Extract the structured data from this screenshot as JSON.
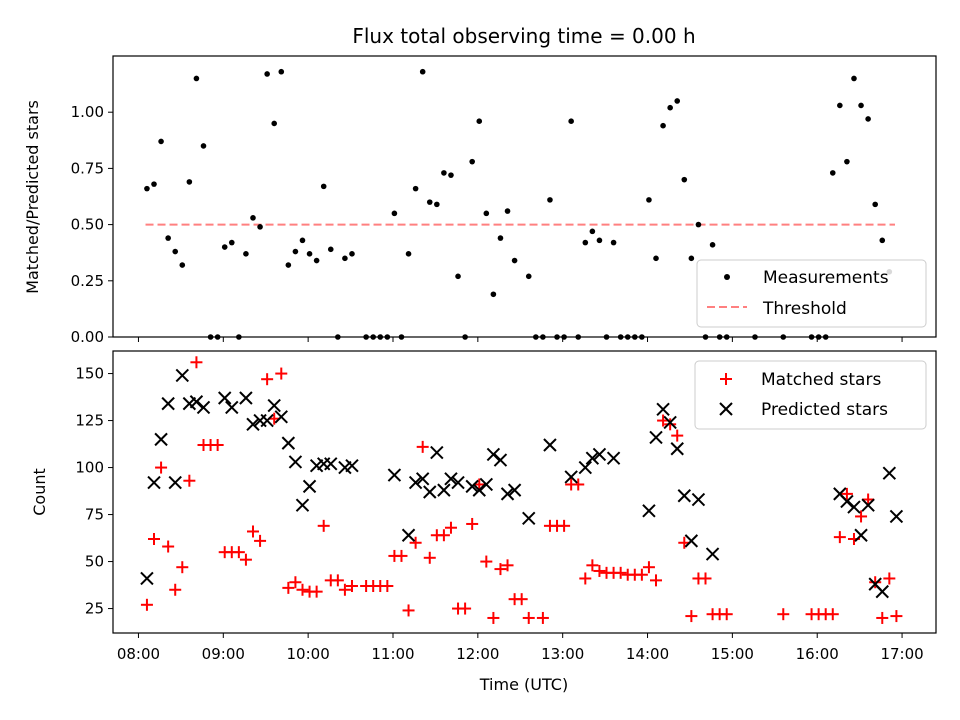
{
  "chart_data": [
    {
      "type": "scatter",
      "title": "Flux total observing time = 0.00 h",
      "xlabel": "",
      "ylabel": "Matched/Predicted stars",
      "xlim": [
        "07:42",
        "17:24"
      ],
      "ylim": [
        0,
        1.25
      ],
      "yticks": [
        "0.00",
        "0.25",
        "0.50",
        "0.75",
        "1.00"
      ],
      "legend": [
        "Measurements",
        "Threshold"
      ],
      "legend_position": "lower-right",
      "threshold": {
        "value": 0.5,
        "x_start": "08:05",
        "x_end": "16:55",
        "color": "#ff8080"
      },
      "series": [
        {
          "name": "Measurements",
          "color": "#000000",
          "points": [
            [
              "08:06",
              0.66
            ],
            [
              "08:11",
              0.68
            ],
            [
              "08:16",
              0.87
            ],
            [
              "08:21",
              0.44
            ],
            [
              "08:26",
              0.38
            ],
            [
              "08:31",
              0.32
            ],
            [
              "08:36",
              0.69
            ],
            [
              "08:41",
              1.15
            ],
            [
              "08:46",
              0.85
            ],
            [
              "08:51",
              0.0
            ],
            [
              "08:56",
              0.0
            ],
            [
              "09:01",
              0.4
            ],
            [
              "09:06",
              0.42
            ],
            [
              "09:11",
              0.0
            ],
            [
              "09:16",
              0.37
            ],
            [
              "09:21",
              0.53
            ],
            [
              "09:26",
              0.49
            ],
            [
              "09:31",
              1.17
            ],
            [
              "09:36",
              0.95
            ],
            [
              "09:41",
              1.18
            ],
            [
              "09:46",
              0.32
            ],
            [
              "09:51",
              0.38
            ],
            [
              "09:56",
              0.43
            ],
            [
              "10:01",
              0.37
            ],
            [
              "10:06",
              0.34
            ],
            [
              "10:11",
              0.67
            ],
            [
              "10:16",
              0.39
            ],
            [
              "10:21",
              0.0
            ],
            [
              "10:26",
              0.35
            ],
            [
              "10:31",
              0.37
            ],
            [
              "10:41",
              0.0
            ],
            [
              "10:46",
              0.0
            ],
            [
              "10:51",
              0.0
            ],
            [
              "10:56",
              0.0
            ],
            [
              "11:01",
              0.55
            ],
            [
              "11:06",
              0.0
            ],
            [
              "11:11",
              0.37
            ],
            [
              "11:16",
              0.66
            ],
            [
              "11:21",
              1.18
            ],
            [
              "11:26",
              0.6
            ],
            [
              "11:31",
              0.59
            ],
            [
              "11:36",
              0.73
            ],
            [
              "11:41",
              0.72
            ],
            [
              "11:46",
              0.27
            ],
            [
              "11:51",
              0.0
            ],
            [
              "11:56",
              0.78
            ],
            [
              "12:01",
              0.96
            ],
            [
              "12:06",
              0.55
            ],
            [
              "12:11",
              0.19
            ],
            [
              "12:16",
              0.44
            ],
            [
              "12:21",
              0.56
            ],
            [
              "12:26",
              0.34
            ],
            [
              "12:36",
              0.27
            ],
            [
              "12:41",
              0.0
            ],
            [
              "12:46",
              0.0
            ],
            [
              "12:51",
              0.61
            ],
            [
              "12:56",
              0.0
            ],
            [
              "13:01",
              0.0
            ],
            [
              "13:06",
              0.96
            ],
            [
              "13:11",
              0.0
            ],
            [
              "13:16",
              0.42
            ],
            [
              "13:21",
              0.47
            ],
            [
              "13:26",
              0.43
            ],
            [
              "13:31",
              0.0
            ],
            [
              "13:36",
              0.42
            ],
            [
              "13:41",
              0.0
            ],
            [
              "13:46",
              0.0
            ],
            [
              "13:51",
              0.0
            ],
            [
              "13:56",
              0.0
            ],
            [
              "14:01",
              0.61
            ],
            [
              "14:06",
              0.35
            ],
            [
              "14:11",
              0.94
            ],
            [
              "14:16",
              1.02
            ],
            [
              "14:21",
              1.05
            ],
            [
              "14:26",
              0.7
            ],
            [
              "14:31",
              0.35
            ],
            [
              "14:36",
              0.5
            ],
            [
              "14:41",
              0.0
            ],
            [
              "14:46",
              0.41
            ],
            [
              "14:51",
              0.0
            ],
            [
              "14:56",
              0.0
            ],
            [
              "15:16",
              0.0
            ],
            [
              "15:36",
              0.0
            ],
            [
              "15:56",
              0.0
            ],
            [
              "16:01",
              0.0
            ],
            [
              "16:06",
              0.0
            ],
            [
              "16:11",
              0.73
            ],
            [
              "16:16",
              1.03
            ],
            [
              "16:21",
              0.78
            ],
            [
              "16:26",
              1.15
            ],
            [
              "16:31",
              1.03
            ],
            [
              "16:36",
              0.97
            ],
            [
              "16:41",
              0.59
            ],
            [
              "16:46",
              0.43
            ],
            [
              "16:51",
              0.29
            ]
          ]
        }
      ]
    },
    {
      "type": "scatter",
      "title": "",
      "xlabel": "Time (UTC)",
      "ylabel": "Count",
      "xlim": [
        "07:42",
        "17:24"
      ],
      "ylim": [
        12,
        162
      ],
      "xticks": [
        "08:00",
        "09:00",
        "10:00",
        "11:00",
        "12:00",
        "13:00",
        "14:00",
        "15:00",
        "16:00",
        "17:00"
      ],
      "yticks": [
        "25",
        "50",
        "75",
        "100",
        "125",
        "150"
      ],
      "legend": [
        "Matched stars",
        "Predicted stars"
      ],
      "legend_position": "upper-right",
      "series": [
        {
          "name": "Matched stars",
          "marker": "plus",
          "color": "#ff0000",
          "points": [
            [
              "08:06",
              27
            ],
            [
              "08:11",
              62
            ],
            [
              "08:16",
              100
            ],
            [
              "08:21",
              58
            ],
            [
              "08:26",
              35
            ],
            [
              "08:31",
              47
            ],
            [
              "08:36",
              93
            ],
            [
              "08:41",
              156
            ],
            [
              "08:46",
              112
            ],
            [
              "08:51",
              112
            ],
            [
              "08:56",
              112
            ],
            [
              "09:01",
              55
            ],
            [
              "09:06",
              55
            ],
            [
              "09:11",
              55
            ],
            [
              "09:16",
              51
            ],
            [
              "09:21",
              66
            ],
            [
              "09:26",
              61
            ],
            [
              "09:31",
              147
            ],
            [
              "09:36",
              126
            ],
            [
              "09:41",
              150
            ],
            [
              "09:46",
              36
            ],
            [
              "09:51",
              39
            ],
            [
              "09:56",
              35
            ],
            [
              "10:01",
              34
            ],
            [
              "10:06",
              34
            ],
            [
              "10:11",
              69
            ],
            [
              "10:16",
              40
            ],
            [
              "10:21",
              40
            ],
            [
              "10:26",
              35
            ],
            [
              "10:31",
              37
            ],
            [
              "10:41",
              37
            ],
            [
              "10:46",
              37
            ],
            [
              "10:51",
              37
            ],
            [
              "10:56",
              37
            ],
            [
              "11:01",
              53
            ],
            [
              "11:06",
              53
            ],
            [
              "11:11",
              24
            ],
            [
              "11:16",
              60
            ],
            [
              "11:21",
              111
            ],
            [
              "11:26",
              52
            ],
            [
              "11:31",
              64
            ],
            [
              "11:36",
              64
            ],
            [
              "11:41",
              68
            ],
            [
              "11:46",
              25
            ],
            [
              "11:51",
              25
            ],
            [
              "11:56",
              70
            ],
            [
              "12:01",
              91
            ],
            [
              "12:06",
              50
            ],
            [
              "12:11",
              20
            ],
            [
              "12:16",
              46
            ],
            [
              "12:21",
              48
            ],
            [
              "12:26",
              30
            ],
            [
              "12:31",
              30
            ],
            [
              "12:36",
              20
            ],
            [
              "12:46",
              20
            ],
            [
              "12:51",
              69
            ],
            [
              "12:56",
              69
            ],
            [
              "13:01",
              69
            ],
            [
              "13:06",
              91
            ],
            [
              "13:11",
              91
            ],
            [
              "13:16",
              41
            ],
            [
              "13:21",
              48
            ],
            [
              "13:26",
              45
            ],
            [
              "13:31",
              44
            ],
            [
              "13:36",
              44
            ],
            [
              "13:41",
              44
            ],
            [
              "13:46",
              43
            ],
            [
              "13:51",
              43
            ],
            [
              "13:56",
              43
            ],
            [
              "14:01",
              47
            ],
            [
              "14:06",
              40
            ],
            [
              "14:11",
              125
            ],
            [
              "14:16",
              123
            ],
            [
              "14:21",
              117
            ],
            [
              "14:26",
              60
            ],
            [
              "14:31",
              21
            ],
            [
              "14:36",
              41
            ],
            [
              "14:41",
              41
            ],
            [
              "14:46",
              22
            ],
            [
              "14:51",
              22
            ],
            [
              "14:56",
              22
            ],
            [
              "15:36",
              22
            ],
            [
              "15:56",
              22
            ],
            [
              "16:01",
              22
            ],
            [
              "16:06",
              22
            ],
            [
              "16:11",
              22
            ],
            [
              "16:16",
              63
            ],
            [
              "16:21",
              86
            ],
            [
              "16:26",
              62
            ],
            [
              "16:31",
              74
            ],
            [
              "16:36",
              83
            ],
            [
              "16:41",
              39
            ],
            [
              "16:46",
              20
            ],
            [
              "16:51",
              41
            ],
            [
              "16:56",
              21
            ]
          ]
        },
        {
          "name": "Predicted stars",
          "marker": "x",
          "color": "#000000",
          "points": [
            [
              "08:06",
              41
            ],
            [
              "08:11",
              92
            ],
            [
              "08:16",
              115
            ],
            [
              "08:21",
              134
            ],
            [
              "08:26",
              92
            ],
            [
              "08:31",
              149
            ],
            [
              "08:36",
              134
            ],
            [
              "08:41",
              135
            ],
            [
              "08:46",
              132
            ],
            [
              "09:01",
              137
            ],
            [
              "09:06",
              132
            ],
            [
              "09:16",
              137
            ],
            [
              "09:21",
              123
            ],
            [
              "09:26",
              125
            ],
            [
              "09:31",
              125
            ],
            [
              "09:36",
              133
            ],
            [
              "09:41",
              127
            ],
            [
              "09:46",
              113
            ],
            [
              "09:51",
              103
            ],
            [
              "09:56",
              80
            ],
            [
              "10:01",
              90
            ],
            [
              "10:06",
              101
            ],
            [
              "10:11",
              102
            ],
            [
              "10:16",
              102
            ],
            [
              "10:26",
              100
            ],
            [
              "10:31",
              101
            ],
            [
              "11:01",
              96
            ],
            [
              "11:11",
              64
            ],
            [
              "11:16",
              92
            ],
            [
              "11:21",
              94
            ],
            [
              "11:26",
              87
            ],
            [
              "11:31",
              108
            ],
            [
              "11:36",
              88
            ],
            [
              "11:41",
              94
            ],
            [
              "11:46",
              92
            ],
            [
              "11:56",
              90
            ],
            [
              "12:01",
              88
            ],
            [
              "12:06",
              91
            ],
            [
              "12:11",
              107
            ],
            [
              "12:16",
              104
            ],
            [
              "12:21",
              86
            ],
            [
              "12:26",
              88
            ],
            [
              "12:36",
              73
            ],
            [
              "12:51",
              112
            ],
            [
              "13:06",
              95
            ],
            [
              "13:16",
              100
            ],
            [
              "13:21",
              105
            ],
            [
              "13:26",
              107
            ],
            [
              "13:36",
              105
            ],
            [
              "14:01",
              77
            ],
            [
              "14:06",
              116
            ],
            [
              "14:11",
              131
            ],
            [
              "14:16",
              124
            ],
            [
              "14:21",
              110
            ],
            [
              "14:26",
              85
            ],
            [
              "14:31",
              61
            ],
            [
              "14:36",
              83
            ],
            [
              "14:46",
              54
            ],
            [
              "16:16",
              86
            ],
            [
              "16:21",
              82
            ],
            [
              "16:26",
              79
            ],
            [
              "16:31",
              64
            ],
            [
              "16:36",
              80
            ],
            [
              "16:41",
              38
            ],
            [
              "16:46",
              34
            ],
            [
              "16:51",
              97
            ],
            [
              "16:56",
              74
            ]
          ]
        }
      ]
    }
  ]
}
